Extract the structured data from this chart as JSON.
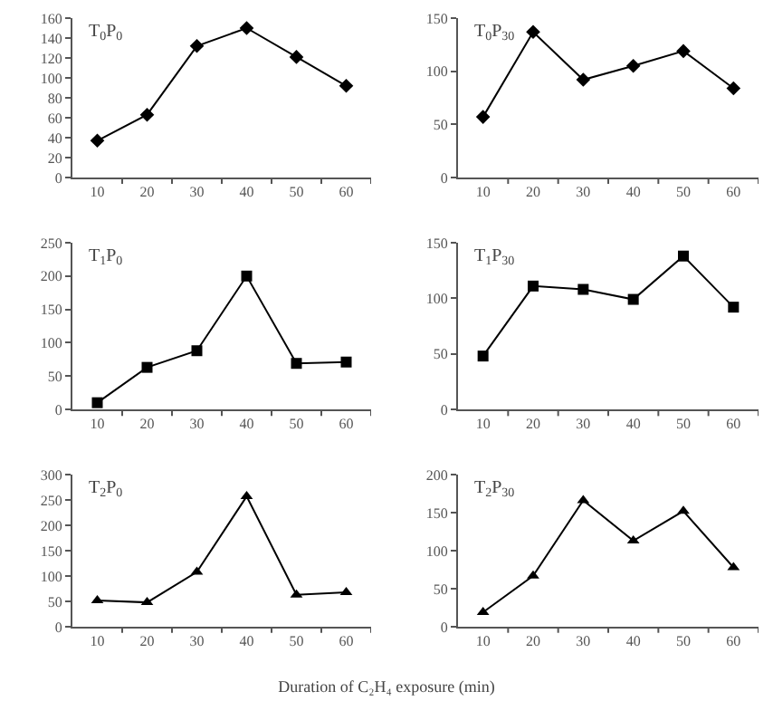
{
  "chart_data": [
    {
      "type": "line",
      "title": "T$_{0}$P$_{0}$",
      "categories": [
        "10",
        "20",
        "30",
        "40",
        "50",
        "60"
      ],
      "series": [
        {
          "color": "#000000",
          "values": [
            37,
            63,
            132,
            150,
            121,
            92
          ]
        }
      ],
      "ylim": [
        0,
        160
      ],
      "yticks": [
        0,
        20,
        40,
        60,
        80,
        100,
        120,
        140,
        160
      ],
      "marker": "diamond"
    },
    {
      "type": "line",
      "title": "T$_{0}$P$_{30}$",
      "categories": [
        "10",
        "20",
        "30",
        "40",
        "50",
        "60"
      ],
      "series": [
        {
          "color": "#000000",
          "values": [
            57,
            137,
            92,
            105,
            119,
            84
          ]
        }
      ],
      "ylim": [
        0,
        150
      ],
      "yticks": [
        0,
        50,
        100,
        150
      ],
      "marker": "diamond"
    },
    {
      "type": "line",
      "title": "T$_{1}$P$_{0}$",
      "categories": [
        "10",
        "20",
        "30",
        "40",
        "50",
        "60"
      ],
      "series": [
        {
          "color": "#000000",
          "values": [
            10,
            63,
            88,
            200,
            69,
            71
          ]
        }
      ],
      "ylim": [
        0,
        250
      ],
      "yticks": [
        0,
        50,
        100,
        150,
        200,
        250
      ],
      "marker": "square"
    },
    {
      "type": "line",
      "title": "T$_{1}$P$_{30}$",
      "categories": [
        "10",
        "20",
        "30",
        "40",
        "50",
        "60"
      ],
      "series": [
        {
          "color": "#000000",
          "values": [
            48,
            111,
            108,
            99,
            138,
            92
          ]
        }
      ],
      "ylim": [
        0,
        150
      ],
      "yticks": [
        0,
        50,
        100,
        150
      ],
      "marker": "square"
    },
    {
      "type": "line",
      "title": "T$_{2}$P$_{0}$",
      "xlabel": "Duration of C₂H₄ exposure (min)",
      "categories": [
        "10",
        "20",
        "30",
        "40",
        "50",
        "60"
      ],
      "series": [
        {
          "color": "#000000",
          "values": [
            52,
            48,
            108,
            257,
            63,
            68
          ]
        }
      ],
      "ylim": [
        0,
        300
      ],
      "yticks": [
        0,
        50,
        100,
        150,
        200,
        250,
        300
      ],
      "marker": "triangle"
    },
    {
      "type": "line",
      "title": "T$_{2}$P$_{30}$",
      "categories": [
        "10",
        "20",
        "30",
        "40",
        "50",
        "60"
      ],
      "series": [
        {
          "color": "#000000",
          "values": [
            19,
            67,
            166,
            113,
            152,
            78
          ]
        }
      ],
      "ylim": [
        0,
        200
      ],
      "yticks": [
        0,
        50,
        100,
        150,
        200
      ],
      "marker": "triangle"
    }
  ]
}
